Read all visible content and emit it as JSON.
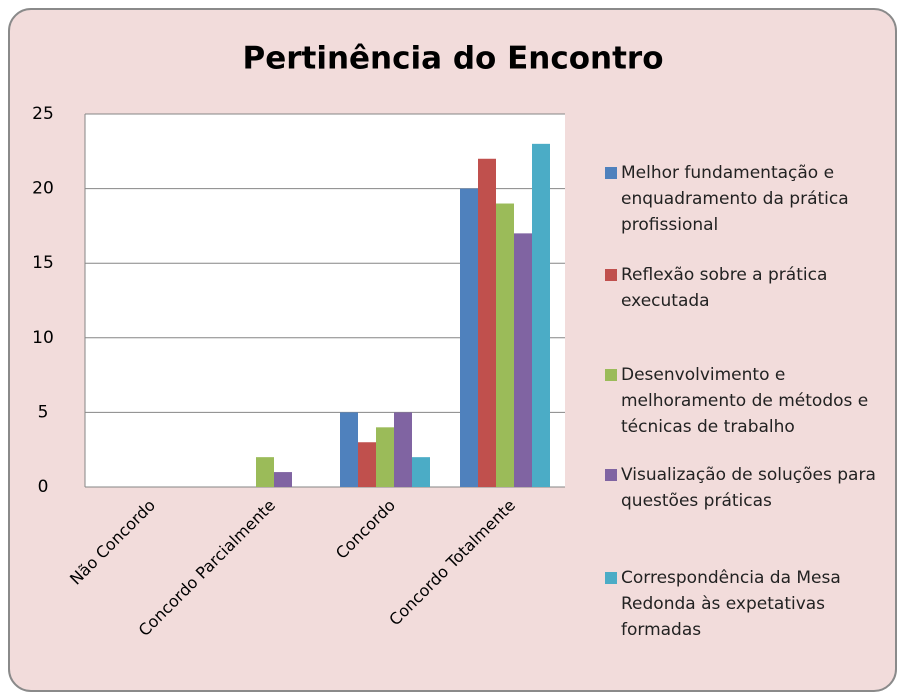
{
  "chart_data": {
    "type": "bar",
    "title": "Pertinência do Encontro",
    "categories": [
      "Não Concordo",
      "Concordo Parcialmente",
      "Concordo",
      "Concordo Totalmente"
    ],
    "series": [
      {
        "name": "Melhor fundamentação e enquadramento da prática profissional",
        "color": "#4f81bd",
        "values": [
          0,
          0,
          5,
          20
        ]
      },
      {
        "name": "Reflexão sobre a prática executada",
        "color": "#c0504d",
        "values": [
          0,
          0,
          3,
          22
        ]
      },
      {
        "name": "Desenvolvimento e melhoramento de métodos e técnicas de trabalho",
        "color": "#9bbb59",
        "values": [
          0,
          2,
          4,
          19
        ]
      },
      {
        "name": "Visualização de soluções para questões práticas",
        "color": "#8064a2",
        "values": [
          0,
          1,
          5,
          17
        ]
      },
      {
        "name": "Correspondência da Mesa Redonda às expetativas formadas",
        "color": "#4bacc6",
        "values": [
          0,
          0,
          2,
          23
        ]
      }
    ],
    "ylim": [
      0,
      25
    ],
    "yticks": [
      0,
      5,
      10,
      15,
      20,
      25
    ],
    "grid": true,
    "legend": "right"
  }
}
